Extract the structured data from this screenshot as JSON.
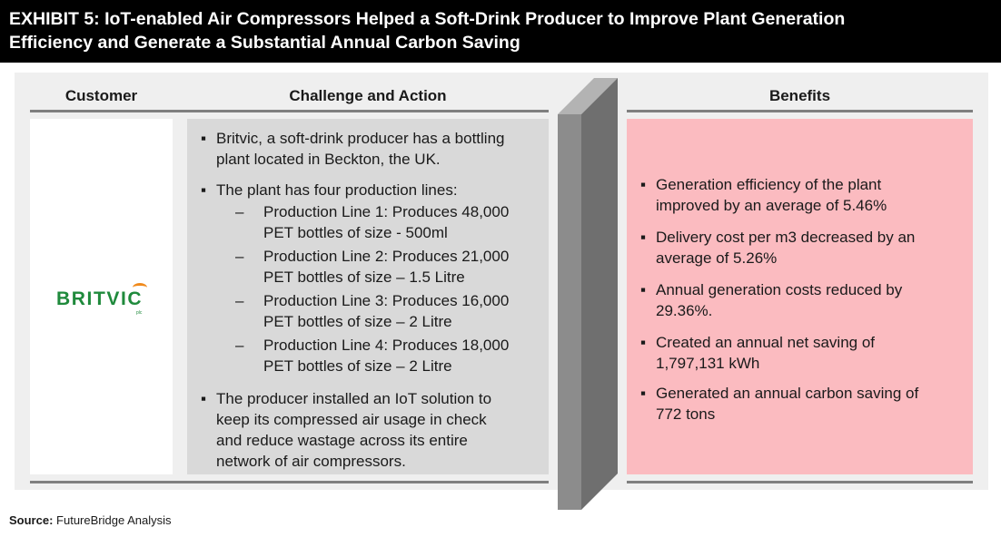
{
  "title": {
    "line1": "EXHIBIT 5: IoT-enabled Air Compressors Helped a Soft-Drink Producer to Improve Plant Generation",
    "line2": "Efficiency and Generate a Substantial Annual Carbon Saving"
  },
  "columns": {
    "customer": "Customer",
    "challenge": "Challenge and Action",
    "benefits": "Benefits"
  },
  "customer": {
    "logo_text": "BRITVIC",
    "logo_suffix": "plc",
    "colors": {
      "logo_green": "#1f8a3c",
      "logo_orange": "#f08a1c"
    }
  },
  "challenge": {
    "bullets": [
      {
        "lines": [
          "Britvic, a soft-drink producer has a bottling",
          "plant located in Beckton, the UK."
        ]
      },
      {
        "lines": [
          "The plant has four production lines:"
        ]
      }
    ],
    "production_lines": [
      {
        "lines": [
          "Production Line 1: Produces 48,000",
          "PET bottles of size - 500ml"
        ]
      },
      {
        "lines": [
          "Production Line 2: Produces 21,000",
          "PET bottles of size – 1.5 Litre"
        ]
      },
      {
        "lines": [
          "Production Line 3: Produces 16,000",
          "PET bottles of size – 2 Litre"
        ]
      },
      {
        "lines": [
          "Production Line 4: Produces 18,000",
          "PET bottles of size – 2 Litre"
        ]
      }
    ],
    "final_bullet": {
      "lines": [
        "The producer installed an IoT solution to",
        "keep its compressed air usage in check",
        "and reduce wastage across its entire",
        "network of air compressors."
      ]
    }
  },
  "benefits": [
    {
      "lines": [
        "Generation efficiency of the plant",
        "improved by an average of 5.46%"
      ]
    },
    {
      "lines": [
        "Delivery cost per m3 decreased by an",
        "average of 5.26%"
      ]
    },
    {
      "lines": [
        "Annual generation costs reduced by",
        "29.36%."
      ]
    },
    {
      "lines": [
        "Created an annual net saving of",
        "1,797,131 kWh"
      ]
    },
    {
      "lines": [
        "Generated an annual carbon saving of",
        "772 tons"
      ]
    }
  ],
  "source": {
    "label": "Source:",
    "text": "FutureBridge Analysis"
  },
  "colors": {
    "title_bg": "#000000",
    "panel_bg": "#efefef",
    "challenge_bg": "#d9d9d9",
    "benefits_bg": "#fbbbc0",
    "rule": "#7f7f7f",
    "wall_front": "#8c8c8c",
    "wall_top": "#b3b3b3"
  }
}
